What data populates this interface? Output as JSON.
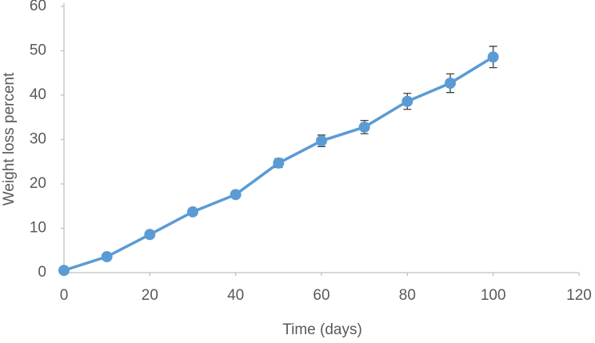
{
  "chart_data": {
    "type": "line",
    "x_label": "Time  (days)",
    "y_label": "Weight loss percent",
    "x": [
      0,
      10,
      20,
      30,
      40,
      50,
      60,
      70,
      80,
      90,
      100
    ],
    "series": [
      {
        "name": "Weight loss",
        "color": "#5b9bd5",
        "values": [
          0.5,
          3.6,
          8.6,
          13.7,
          17.6,
          24.7,
          29.7,
          32.8,
          38.6,
          42.7,
          48.6
        ],
        "errors": [
          0.3,
          0.3,
          0.3,
          0.3,
          0.5,
          1.0,
          1.3,
          1.5,
          1.8,
          2.1,
          2.4
        ]
      }
    ],
    "xlim": [
      0,
      120
    ],
    "xticks": [
      0,
      20,
      40,
      60,
      80,
      100,
      120
    ],
    "ylim": [
      0,
      60
    ],
    "yticks": [
      0,
      10,
      20,
      30,
      40,
      50,
      60
    ],
    "grid": false
  }
}
